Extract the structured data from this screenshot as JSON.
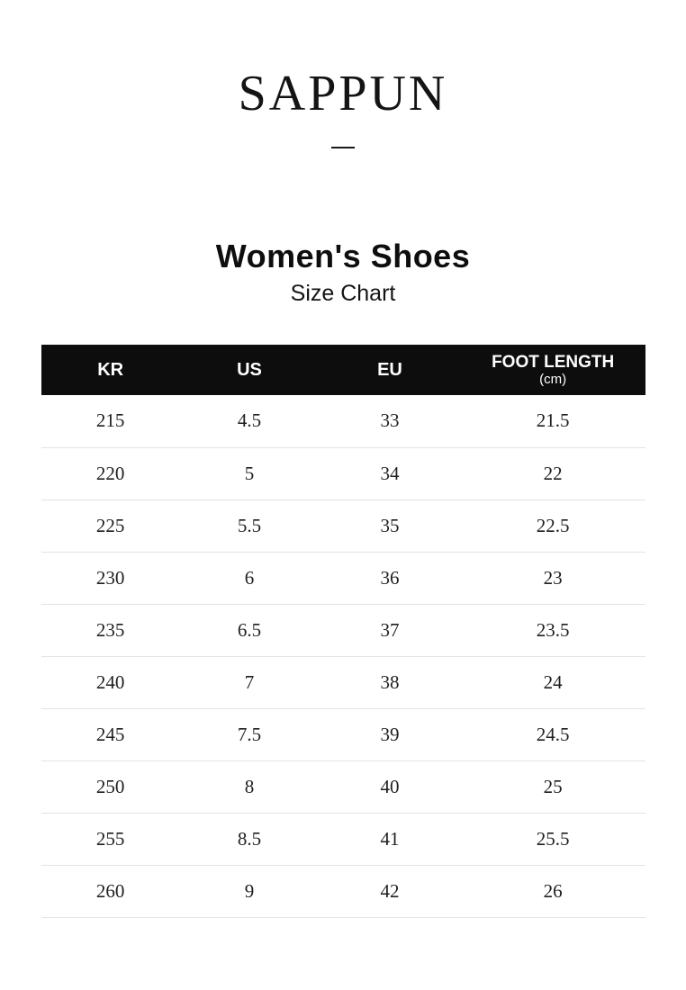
{
  "brand": {
    "name": "SAPPUN"
  },
  "page": {
    "title": "Women's Shoes",
    "subtitle": "Size Chart"
  },
  "colors": {
    "header_bg": "#0d0d0d",
    "header_text": "#ffffff",
    "row_divider": "#e3e3e3",
    "body_text": "#1f1f1f"
  },
  "table": {
    "headers": [
      {
        "label": "KR"
      },
      {
        "label": "US"
      },
      {
        "label": "EU"
      },
      {
        "label": "FOOT LENGTH",
        "sub": "(cm)"
      }
    ],
    "rows": [
      [
        "215",
        "4.5",
        "33",
        "21.5"
      ],
      [
        "220",
        "5",
        "34",
        "22"
      ],
      [
        "225",
        "5.5",
        "35",
        "22.5"
      ],
      [
        "230",
        "6",
        "36",
        "23"
      ],
      [
        "235",
        "6.5",
        "37",
        "23.5"
      ],
      [
        "240",
        "7",
        "38",
        "24"
      ],
      [
        "245",
        "7.5",
        "39",
        "24.5"
      ],
      [
        "250",
        "8",
        "40",
        "25"
      ],
      [
        "255",
        "8.5",
        "41",
        "25.5"
      ],
      [
        "260",
        "9",
        "42",
        "26"
      ]
    ]
  }
}
